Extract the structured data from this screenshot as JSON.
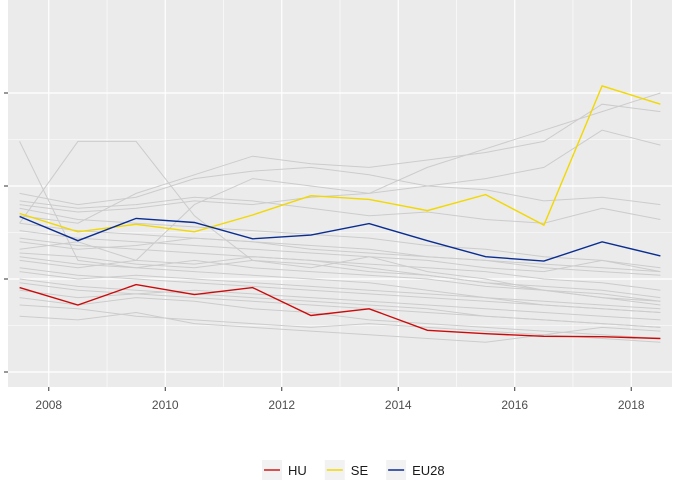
{
  "chart_data": {
    "type": "line",
    "title": "",
    "xlabel": "",
    "ylabel": "",
    "xlim": [
      2007.3,
      2018.7
    ],
    "ylim": [
      0,
      1
    ],
    "x": [
      2007.5,
      2008.5,
      2009.5,
      2010.5,
      2011.5,
      2012.5,
      2013.5,
      2014.5,
      2015.5,
      2016.5,
      2017.5,
      2018.5
    ],
    "x_ticks": [
      2008,
      2010,
      2012,
      2014,
      2016,
      2018
    ],
    "x_tick_labels": [
      "2008",
      "2010",
      "2012",
      "2014",
      "2016",
      "2018"
    ],
    "y_ticks": [
      0.0,
      0.25,
      0.5,
      0.75
    ],
    "y_tick_labels": [
      "",
      "",
      "",
      ""
    ],
    "grid": true,
    "legend_position": "bottom",
    "highlighted_series": [
      {
        "name": "HU",
        "color": "#cc0a0a",
        "values": [
          0.227,
          0.18,
          0.235,
          0.208,
          0.227,
          0.152,
          0.17,
          0.112,
          0.103,
          0.096,
          0.095,
          0.09
        ]
      },
      {
        "name": "SE",
        "color": "#f2d800",
        "values": [
          0.426,
          0.377,
          0.397,
          0.377,
          0.422,
          0.474,
          0.464,
          0.434,
          0.477,
          0.395,
          0.769,
          0.72
        ]
      },
      {
        "name": "EU28",
        "color": "#0a2d91",
        "values": [
          0.418,
          0.353,
          0.413,
          0.402,
          0.358,
          0.368,
          0.399,
          0.353,
          0.31,
          0.298,
          0.35,
          0.312
        ]
      }
    ],
    "background_color": "#cccccc",
    "background_series": [
      [
        0.45,
        0.43,
        0.44,
        0.46,
        0.45,
        0.47,
        0.48,
        0.5,
        0.52,
        0.55,
        0.65,
        0.61
      ],
      [
        0.62,
        0.3,
        0.28,
        0.27,
        0.26,
        0.25,
        0.24,
        0.22,
        0.2,
        0.18,
        0.17,
        0.16
      ],
      [
        0.4,
        0.62,
        0.62,
        0.42,
        0.3,
        0.28,
        0.31,
        0.27,
        0.25,
        0.22,
        0.2,
        0.19
      ],
      [
        0.25,
        0.23,
        0.22,
        0.21,
        0.2,
        0.19,
        0.18,
        0.17,
        0.15,
        0.14,
        0.13,
        0.12
      ],
      [
        0.35,
        0.33,
        0.34,
        0.36,
        0.35,
        0.34,
        0.33,
        0.31,
        0.3,
        0.29,
        0.28,
        0.27
      ],
      [
        0.3,
        0.28,
        0.3,
        0.45,
        0.52,
        0.5,
        0.48,
        0.55,
        0.6,
        0.65,
        0.7,
        0.75
      ],
      [
        0.4,
        0.38,
        0.37,
        0.36,
        0.35,
        0.33,
        0.32,
        0.31,
        0.3,
        0.28,
        0.27,
        0.26
      ],
      [
        0.15,
        0.14,
        0.16,
        0.13,
        0.12,
        0.11,
        0.1,
        0.09,
        0.08,
        0.1,
        0.12,
        0.11
      ],
      [
        0.48,
        0.45,
        0.47,
        0.52,
        0.54,
        0.55,
        0.53,
        0.5,
        0.49,
        0.46,
        0.47,
        0.45
      ],
      [
        0.28,
        0.26,
        0.25,
        0.24,
        0.23,
        0.22,
        0.21,
        0.2,
        0.19,
        0.18,
        0.17,
        0.16
      ],
      [
        0.32,
        0.31,
        0.29,
        0.28,
        0.3,
        0.29,
        0.27,
        0.26,
        0.24,
        0.23,
        0.22,
        0.2
      ],
      [
        0.2,
        0.18,
        0.2,
        0.19,
        0.17,
        0.16,
        0.14,
        0.13,
        0.12,
        0.11,
        0.1,
        0.09
      ],
      [
        0.38,
        0.36,
        0.35,
        0.34,
        0.33,
        0.32,
        0.31,
        0.3,
        0.28,
        0.27,
        0.3,
        0.27
      ],
      [
        0.42,
        0.4,
        0.48,
        0.53,
        0.58,
        0.56,
        0.55,
        0.57,
        0.59,
        0.62,
        0.72,
        0.7
      ],
      [
        0.22,
        0.2,
        0.21,
        0.22,
        0.21,
        0.2,
        0.19,
        0.18,
        0.17,
        0.16,
        0.15,
        0.14
      ],
      [
        0.46,
        0.44,
        0.45,
        0.47,
        0.46,
        0.44,
        0.42,
        0.43,
        0.41,
        0.4,
        0.44,
        0.41
      ],
      [
        0.18,
        0.17,
        0.15,
        0.14,
        0.13,
        0.12,
        0.13,
        0.12,
        0.11,
        0.1,
        0.09,
        0.08
      ],
      [
        0.33,
        0.35,
        0.3,
        0.29,
        0.31,
        0.3,
        0.28,
        0.26,
        0.24,
        0.22,
        0.21,
        0.19
      ],
      [
        0.27,
        0.25,
        0.26,
        0.25,
        0.24,
        0.23,
        0.22,
        0.21,
        0.2,
        0.19,
        0.18,
        0.17
      ],
      [
        0.44,
        0.41,
        0.4,
        0.39,
        0.38,
        0.37,
        0.36,
        0.34,
        0.33,
        0.31,
        0.3,
        0.28
      ],
      [
        0.31,
        0.29,
        0.28,
        0.3,
        0.28,
        0.27,
        0.26,
        0.25,
        0.23,
        0.22,
        0.2,
        0.18
      ],
      [
        0.36,
        0.34,
        0.33,
        0.32,
        0.31,
        0.3,
        0.29,
        0.28,
        0.27,
        0.25,
        0.24,
        0.22
      ],
      [
        0.24,
        0.22,
        0.21,
        0.2,
        0.19,
        0.18,
        0.17,
        0.16,
        0.15,
        0.14,
        0.13,
        0.12
      ]
    ]
  }
}
